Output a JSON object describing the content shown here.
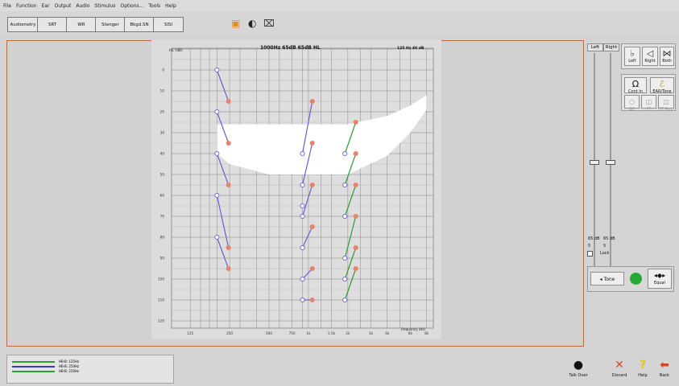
{
  "menu": [
    "File",
    "Function",
    "Ear",
    "Output",
    "Audio",
    "Stimulus",
    "Options...",
    "Tools",
    "Help"
  ],
  "toolbar": {
    "tabs": [
      "Audiometry",
      "SRT",
      "WR",
      "Stenger",
      "Bkgd.SN",
      "SISI"
    ],
    "icons": [
      "audiogram-icon",
      "headphone-icon",
      "camera-icon"
    ]
  },
  "audiogram": {
    "ylabel": "HL (dB)",
    "xlabel": "Frequency (Hz)",
    "status": "1000Hz  65dB  65dB HL",
    "status_right": "125 Hz 40 dB",
    "y_ticks": [
      "0",
      "10",
      "20",
      "30",
      "40",
      "50",
      "60",
      "70",
      "80",
      "90",
      "100",
      "110",
      "120"
    ],
    "x_ticks": [
      "125",
      "250",
      "500",
      "750",
      "1k",
      "1.5k",
      "2k",
      "3k",
      "4k",
      "6k",
      "8k"
    ],
    "colors": {
      "blue": "#6a5fd0",
      "red": "#e8826b",
      "green": "#2f9a3a",
      "speech_banana": "#ffffff"
    }
  },
  "chart_data": {
    "type": "scatter",
    "x_scale": "log",
    "ylim": [
      120,
      -10
    ],
    "title": "1000Hz  65dB  65dB HL",
    "xlabel": "Frequency (Hz)",
    "ylabel": "HL (dB)",
    "series": [
      {
        "marker": "circle",
        "color": "#6a5fd0",
        "points": [
          {
            "x": 200,
            "y": 0
          },
          {
            "x": 200,
            "y": 20
          },
          {
            "x": 200,
            "y": 40
          },
          {
            "x": 200,
            "y": 60
          },
          {
            "x": 200,
            "y": 80
          },
          {
            "x": 900,
            "y": 40
          },
          {
            "x": 900,
            "y": 55
          },
          {
            "x": 900,
            "y": 65
          },
          {
            "x": 900,
            "y": 70
          },
          {
            "x": 900,
            "y": 85
          },
          {
            "x": 900,
            "y": 100
          },
          {
            "x": 900,
            "y": 110
          },
          {
            "x": 1900,
            "y": 40
          },
          {
            "x": 1900,
            "y": 55
          },
          {
            "x": 1900,
            "y": 70
          },
          {
            "x": 1900,
            "y": 90
          },
          {
            "x": 1900,
            "y": 100
          },
          {
            "x": 1900,
            "y": 110
          }
        ]
      },
      {
        "marker": "circle",
        "color": "#e8826b",
        "points": [
          {
            "x": 245,
            "y": 15
          },
          {
            "x": 245,
            "y": 35
          },
          {
            "x": 245,
            "y": 55
          },
          {
            "x": 245,
            "y": 85
          },
          {
            "x": 245,
            "y": 95
          },
          {
            "x": 1070,
            "y": 15
          },
          {
            "x": 1070,
            "y": 35
          },
          {
            "x": 1070,
            "y": 55
          },
          {
            "x": 1070,
            "y": 75
          },
          {
            "x": 1070,
            "y": 95
          },
          {
            "x": 1070,
            "y": 110
          },
          {
            "x": 2300,
            "y": 25
          },
          {
            "x": 2300,
            "y": 40
          },
          {
            "x": 2300,
            "y": 55
          },
          {
            "x": 2300,
            "y": 70
          },
          {
            "x": 2300,
            "y": 85
          },
          {
            "x": 2300,
            "y": 95
          }
        ]
      }
    ],
    "lines": [
      {
        "color": "#6a5fd0",
        "segments": [
          [
            200,
            0,
            245,
            15
          ],
          [
            200,
            20,
            245,
            35
          ],
          [
            200,
            40,
            245,
            55
          ],
          [
            200,
            60,
            245,
            85
          ],
          [
            200,
            80,
            245,
            95
          ],
          [
            900,
            40,
            1070,
            15
          ],
          [
            900,
            55,
            1070,
            35
          ],
          [
            900,
            70,
            1070,
            55
          ],
          [
            900,
            85,
            1070,
            75
          ],
          [
            900,
            100,
            1070,
            95
          ],
          [
            900,
            110,
            1070,
            110
          ]
        ]
      },
      {
        "color": "#2f9a3a",
        "segments": [
          [
            1900,
            40,
            2300,
            25
          ],
          [
            1900,
            55,
            2300,
            40
          ],
          [
            1900,
            70,
            2300,
            55
          ],
          [
            1900,
            90,
            2300,
            70
          ],
          [
            1900,
            100,
            2300,
            85
          ],
          [
            1900,
            110,
            2300,
            95
          ]
        ]
      }
    ]
  },
  "sliders": {
    "left_label": "Left",
    "right_label": "Right",
    "left_value": "65 dB",
    "right_value": "65 dB",
    "left_step": "5",
    "right_step": "5",
    "lock_label": "Lock"
  },
  "ear_buttons": [
    {
      "label": "Left",
      "icon": "left-ear-icon"
    },
    {
      "label": "Right",
      "icon": "right-ear-icon"
    },
    {
      "label": "Both",
      "icon": "both-ears-icon"
    }
  ],
  "output_buttons": [
    {
      "label": "Cont In",
      "icon": "headphones-icon"
    },
    {
      "label": "EAR/Tone",
      "icon": "insert-earphones-icon"
    }
  ],
  "small_buttons": [
    "BC",
    "FF",
    "FF Rng"
  ],
  "tone": {
    "tone_label": "Tone",
    "equal_label": "Equal",
    "status_color": "#22aa33"
  },
  "legend": [
    {
      "color": "#2d9d39",
      "label": "HB-B: 125Hz"
    },
    {
      "color": "#3a3ac8",
      "label": "HB-B: 250Hz"
    },
    {
      "color": "#2d9d39",
      "label": "HB-B: 250Hz"
    }
  ],
  "bottom_buttons": [
    {
      "label": "Talk Over",
      "icon": "microphone-icon"
    },
    {
      "label": "Discard",
      "icon": "discard-x-icon"
    },
    {
      "label": "Help",
      "icon": "help-question-icon"
    },
    {
      "label": "Back",
      "icon": "back-arrow-icon"
    }
  ]
}
